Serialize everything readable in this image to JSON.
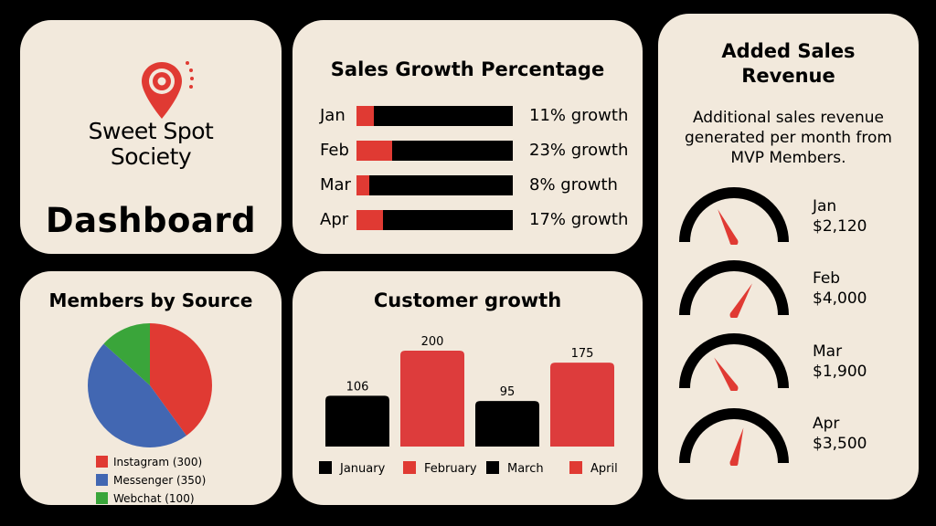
{
  "colors": {
    "background": "#000000",
    "card": "#f2e9dc",
    "red": "#e03a33",
    "black": "#000000",
    "blue": "#4267b2",
    "green": "#3aa53a"
  },
  "logo": {
    "icon": "location-pin-icon",
    "brand_line1": "Sweet Spot",
    "brand_line2": "Society",
    "dashboard_title": "Dashboard"
  },
  "sales_growth": {
    "title": "Sales Growth Percentage",
    "rows": [
      {
        "month": "Jan",
        "percent": 11,
        "label": "11% growth"
      },
      {
        "month": "Feb",
        "percent": 23,
        "label": "23% growth"
      },
      {
        "month": "Mar",
        "percent": 8,
        "label": "8% growth"
      },
      {
        "month": "Apr",
        "percent": 17,
        "label": "17% growth"
      }
    ]
  },
  "revenue": {
    "title_line1": "Added Sales",
    "title_line2": "Revenue",
    "description": "Additional sales revenue generated per month from MVP Members.",
    "items": [
      {
        "month": "Jan",
        "amount": "$2,120",
        "value": 2120
      },
      {
        "month": "Feb",
        "amount": "$4,000",
        "value": 4000
      },
      {
        "month": "Mar",
        "amount": "$1,900",
        "value": 1900
      },
      {
        "month": "Apr",
        "amount": "$3,500",
        "value": 3500
      }
    ]
  },
  "members": {
    "title": "Members by Source",
    "legend": [
      {
        "label": "Instagram (300)",
        "color": "#e03a33"
      },
      {
        "label": "Messenger (350)",
        "color": "#4267b2"
      },
      {
        "label": "Webchat (100)",
        "color": "#3aa53a"
      }
    ]
  },
  "customer": {
    "title": "Customer growth",
    "legend": [
      {
        "label": "January",
        "color": "#000000"
      },
      {
        "label": "February",
        "color": "#e03a33"
      },
      {
        "label": "March",
        "color": "#000000"
      },
      {
        "label": "April",
        "color": "#e03a33"
      }
    ]
  },
  "chart_data": [
    {
      "type": "bar",
      "title": "Sales Growth Percentage",
      "categories": [
        "Jan",
        "Feb",
        "Mar",
        "Apr"
      ],
      "values": [
        11,
        23,
        8,
        17
      ],
      "data_labels": [
        "11% growth",
        "23% growth",
        "8% growth",
        "17% growth"
      ],
      "orientation": "horizontal",
      "ylim": [
        0,
        100
      ]
    },
    {
      "type": "pie",
      "title": "Members by Source",
      "categories": [
        "Instagram",
        "Messenger",
        "Webchat"
      ],
      "values": [
        300,
        350,
        100
      ],
      "colors": [
        "#e03a33",
        "#4267b2",
        "#3aa53a"
      ],
      "legend_placement": "bottom"
    },
    {
      "type": "bar",
      "title": "Customer growth",
      "categories": [
        "January",
        "February",
        "March",
        "April"
      ],
      "values": [
        106,
        200,
        95,
        175
      ],
      "colors": [
        "#000000",
        "#e03a33",
        "#000000",
        "#e03a33"
      ],
      "ylim": [
        0,
        200
      ],
      "legend_placement": "bottom"
    },
    {
      "type": "gauge",
      "title": "Added Sales Revenue",
      "categories": [
        "Jan",
        "Feb",
        "Mar",
        "Apr"
      ],
      "values": [
        2120,
        4000,
        1900,
        3500
      ],
      "data_labels": [
        "$2,120",
        "$4,000",
        "$1,900",
        "$3,500"
      ],
      "ylim": [
        0,
        6000
      ]
    }
  ]
}
